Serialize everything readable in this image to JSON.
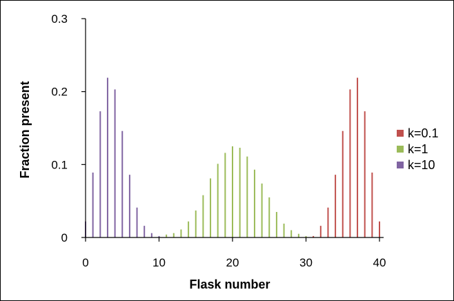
{
  "chart_data": {
    "type": "bar",
    "title": "",
    "xlabel": "Flask number",
    "ylabel": "Fraction present",
    "xlim": [
      0,
      40
    ],
    "ylim": [
      0,
      0.3
    ],
    "x_ticks": [
      "0",
      "10",
      "20",
      "30",
      "40"
    ],
    "y_ticks": [
      "0",
      "0.1",
      "0.2",
      "0.3"
    ],
    "grid": false,
    "legend_position": "right",
    "series": [
      {
        "name": "k=0.1",
        "color": "#c0504d",
        "x": [
          31,
          32,
          33,
          34,
          35,
          36,
          37,
          38,
          39,
          40
        ],
        "values": [
          0.002,
          0.016,
          0.041,
          0.086,
          0.146,
          0.203,
          0.219,
          0.173,
          0.089,
          0.022
        ]
      },
      {
        "name": "k=1",
        "color": "#9bbb59",
        "x": [
          10,
          11,
          12,
          13,
          14,
          15,
          16,
          17,
          18,
          19,
          20,
          21,
          22,
          23,
          24,
          25,
          26,
          27,
          28,
          29,
          30
        ],
        "values": [
          0.001,
          0.004,
          0.006,
          0.011,
          0.022,
          0.037,
          0.058,
          0.081,
          0.101,
          0.116,
          0.125,
          0.123,
          0.111,
          0.093,
          0.074,
          0.055,
          0.035,
          0.019,
          0.01,
          0.005,
          0.002
        ]
      },
      {
        "name": "k=10",
        "color": "#8064a2",
        "x": [
          0,
          1,
          2,
          3,
          4,
          5,
          6,
          7,
          8,
          9,
          10
        ],
        "values": [
          0.022,
          0.089,
          0.173,
          0.219,
          0.203,
          0.146,
          0.086,
          0.041,
          0.016,
          0.006,
          0.002
        ]
      }
    ]
  }
}
